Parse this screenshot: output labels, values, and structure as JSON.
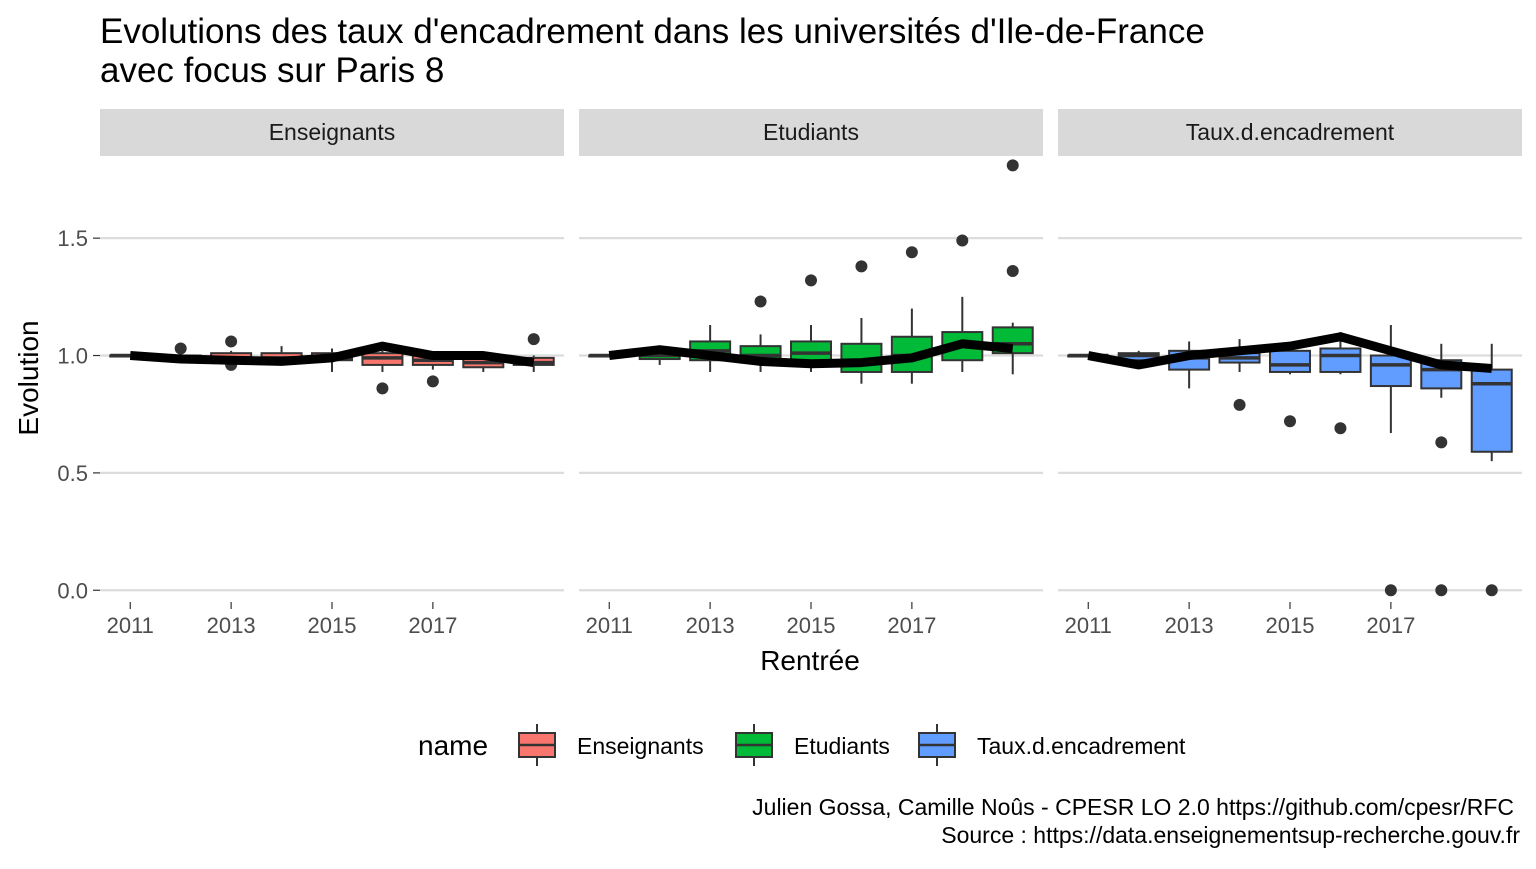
{
  "chart_data": {
    "type": "boxplot",
    "title_line1": "Evolutions des taux d'encadrement dans les universités d'Ile-de-France",
    "title_line2": "avec focus sur Paris 8",
    "xlabel": "Rentrée",
    "ylabel": "Evolution",
    "x_ticks": [
      "2011",
      "2013",
      "2015",
      "2017"
    ],
    "y_ticks": [
      "0.0",
      "0.5",
      "1.0",
      "1.5"
    ],
    "ylim": [
      -0.05,
      1.85
    ],
    "xlim": [
      2010.4,
      2019.6
    ],
    "grid": true,
    "legend_title": "name",
    "legend_position": "bottom",
    "caption_line1": "Julien Gossa, Camille Noûs - CPESR LO 2.0 https://github.com/cpesr/RFC",
    "caption_line2": "Source : https://data.enseignementsup-recherche.gouv.fr",
    "facets": [
      {
        "name": "Enseignants",
        "color": "#F8766D",
        "boxes": [
          {
            "year": 2011,
            "low": 1.0,
            "q1": 1.0,
            "median": 1.0,
            "q3": 1.0,
            "high": 1.0,
            "outliers": []
          },
          {
            "year": 2012,
            "low": 0.98,
            "q1": 0.985,
            "median": 0.99,
            "q3": 1.0,
            "high": 1.01,
            "outliers": [
              1.03
            ]
          },
          {
            "year": 2013,
            "low": 0.97,
            "q1": 0.98,
            "median": 0.99,
            "q3": 1.01,
            "high": 1.02,
            "outliers": [
              1.06,
              0.96
            ]
          },
          {
            "year": 2014,
            "low": 0.97,
            "q1": 0.98,
            "median": 0.99,
            "q3": 1.01,
            "high": 1.04,
            "outliers": []
          },
          {
            "year": 2015,
            "low": 0.93,
            "q1": 0.98,
            "median": 0.99,
            "q3": 1.01,
            "high": 1.03,
            "outliers": []
          },
          {
            "year": 2016,
            "low": 0.93,
            "q1": 0.96,
            "median": 0.99,
            "q3": 1.01,
            "high": 1.02,
            "outliers": [
              0.86
            ]
          },
          {
            "year": 2017,
            "low": 0.94,
            "q1": 0.96,
            "median": 0.98,
            "q3": 1.0,
            "high": 1.01,
            "outliers": [
              0.89
            ]
          },
          {
            "year": 2018,
            "low": 0.93,
            "q1": 0.95,
            "median": 0.97,
            "q3": 0.99,
            "high": 1.0,
            "outliers": []
          },
          {
            "year": 2019,
            "low": 0.93,
            "q1": 0.96,
            "median": 0.97,
            "q3": 0.99,
            "high": 1.0,
            "outliers": [
              1.07
            ]
          }
        ],
        "focus_line": [
          1.0,
          0.985,
          0.98,
          0.975,
          0.99,
          1.04,
          1.0,
          1.0,
          0.97
        ]
      },
      {
        "name": "Etudiants",
        "color": "#00BA38",
        "boxes": [
          {
            "year": 2011,
            "low": 1.0,
            "q1": 1.0,
            "median": 1.0,
            "q3": 1.0,
            "high": 1.0,
            "outliers": []
          },
          {
            "year": 2012,
            "low": 0.96,
            "q1": 0.985,
            "median": 1.0,
            "q3": 1.02,
            "high": 1.03,
            "outliers": []
          },
          {
            "year": 2013,
            "low": 0.93,
            "q1": 0.98,
            "median": 1.02,
            "q3": 1.06,
            "high": 1.13,
            "outliers": []
          },
          {
            "year": 2014,
            "low": 0.93,
            "q1": 0.97,
            "median": 1.0,
            "q3": 1.04,
            "high": 1.09,
            "outliers": [
              1.23
            ]
          },
          {
            "year": 2015,
            "low": 0.93,
            "q1": 0.97,
            "median": 1.01,
            "q3": 1.06,
            "high": 1.13,
            "outliers": [
              1.32
            ]
          },
          {
            "year": 2016,
            "low": 0.88,
            "q1": 0.93,
            "median": 0.98,
            "q3": 1.05,
            "high": 1.16,
            "outliers": [
              1.38
            ]
          },
          {
            "year": 2017,
            "low": 0.88,
            "q1": 0.93,
            "median": 1.0,
            "q3": 1.08,
            "high": 1.2,
            "outliers": [
              1.44
            ]
          },
          {
            "year": 2018,
            "low": 0.93,
            "q1": 0.98,
            "median": 1.04,
            "q3": 1.1,
            "high": 1.25,
            "outliers": [
              1.49
            ]
          },
          {
            "year": 2019,
            "low": 0.92,
            "q1": 1.01,
            "median": 1.05,
            "q3": 1.12,
            "high": 1.14,
            "outliers": [
              1.81,
              1.36
            ]
          }
        ],
        "focus_line": [
          1.0,
          1.025,
          1.0,
          0.975,
          0.965,
          0.97,
          0.99,
          1.05,
          1.03
        ]
      },
      {
        "name": "Taux.d.encadrement",
        "color": "#619CFF",
        "boxes": [
          {
            "year": 2011,
            "low": 1.0,
            "q1": 1.0,
            "median": 1.0,
            "q3": 1.0,
            "high": 1.0,
            "outliers": []
          },
          {
            "year": 2012,
            "low": 0.97,
            "q1": 0.98,
            "median": 1.0,
            "q3": 1.01,
            "high": 1.02,
            "outliers": []
          },
          {
            "year": 2013,
            "low": 0.86,
            "q1": 0.94,
            "median": 0.99,
            "q3": 1.02,
            "high": 1.06,
            "outliers": []
          },
          {
            "year": 2014,
            "low": 0.93,
            "q1": 0.97,
            "median": 0.99,
            "q3": 1.01,
            "high": 1.07,
            "outliers": [
              0.79
            ]
          },
          {
            "year": 2015,
            "low": 0.92,
            "q1": 0.93,
            "median": 0.96,
            "q3": 1.02,
            "high": 1.04,
            "outliers": [
              0.72
            ]
          },
          {
            "year": 2016,
            "low": 0.92,
            "q1": 0.93,
            "median": 1.0,
            "q3": 1.03,
            "high": 1.1,
            "outliers": [
              0.69
            ]
          },
          {
            "year": 2017,
            "low": 0.67,
            "q1": 0.87,
            "median": 0.96,
            "q3": 1.0,
            "high": 1.13,
            "outliers": [
              0.0
            ]
          },
          {
            "year": 2018,
            "low": 0.82,
            "q1": 0.86,
            "median": 0.94,
            "q3": 0.98,
            "high": 1.05,
            "outliers": [
              0.63,
              0.0
            ]
          },
          {
            "year": 2019,
            "low": 0.55,
            "q1": 0.59,
            "median": 0.88,
            "q3": 0.94,
            "high": 1.05,
            "outliers": [
              0.0
            ]
          }
        ],
        "focus_line": [
          1.0,
          0.96,
          1.0,
          1.02,
          1.04,
          1.08,
          1.02,
          0.96,
          0.945
        ]
      }
    ]
  }
}
